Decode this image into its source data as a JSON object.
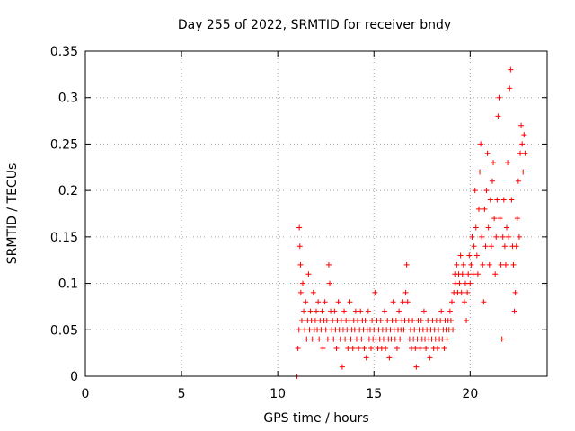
{
  "chart_data": {
    "type": "scatter",
    "title": "Day 255 of 2022, SRMTID for receiver bndy",
    "xlabel": "GPS time / hours",
    "ylabel": "SRMTID / TECUs",
    "xlim": [
      0,
      24
    ],
    "ylim": [
      0,
      0.35
    ],
    "xticks": [
      0,
      5,
      10,
      15,
      20
    ],
    "yticks": [
      0,
      0.05,
      0.1,
      0.15,
      0.2,
      0.25,
      0.3,
      0.35
    ],
    "xtick_labels": [
      "0",
      "5",
      "10",
      "15",
      "20"
    ],
    "ytick_labels": [
      "0",
      "0.05",
      "0.1",
      "0.15",
      "0.2",
      "0.25",
      "0.3",
      "0.35"
    ],
    "grid": true,
    "marker": "+",
    "color": "#ff0000",
    "series": [
      {
        "name": "SRMTID",
        "points": [
          [
            11.0,
            0.0
          ],
          [
            11.05,
            0.03
          ],
          [
            11.1,
            0.05
          ],
          [
            11.12,
            0.16
          ],
          [
            11.15,
            0.14
          ],
          [
            11.18,
            0.12
          ],
          [
            11.2,
            0.09
          ],
          [
            11.25,
            0.06
          ],
          [
            11.3,
            0.1
          ],
          [
            11.35,
            0.07
          ],
          [
            11.4,
            0.05
          ],
          [
            11.45,
            0.08
          ],
          [
            11.5,
            0.04
          ],
          [
            11.55,
            0.06
          ],
          [
            11.6,
            0.11
          ],
          [
            11.65,
            0.05
          ],
          [
            11.7,
            0.07
          ],
          [
            11.75,
            0.06
          ],
          [
            11.8,
            0.04
          ],
          [
            11.85,
            0.09
          ],
          [
            11.9,
            0.05
          ],
          [
            11.95,
            0.06
          ],
          [
            12.0,
            0.07
          ],
          [
            12.05,
            0.05
          ],
          [
            12.1,
            0.08
          ],
          [
            12.15,
            0.04
          ],
          [
            12.2,
            0.06
          ],
          [
            12.25,
            0.05
          ],
          [
            12.3,
            0.07
          ],
          [
            12.35,
            0.03
          ],
          [
            12.4,
            0.06
          ],
          [
            12.45,
            0.08
          ],
          [
            12.5,
            0.05
          ],
          [
            12.55,
            0.06
          ],
          [
            12.6,
            0.04
          ],
          [
            12.65,
            0.12
          ],
          [
            12.7,
            0.1
          ],
          [
            12.75,
            0.07
          ],
          [
            12.8,
            0.05
          ],
          [
            12.85,
            0.06
          ],
          [
            12.9,
            0.04
          ],
          [
            12.95,
            0.07
          ],
          [
            13.0,
            0.05
          ],
          [
            13.05,
            0.03
          ],
          [
            13.1,
            0.06
          ],
          [
            13.15,
            0.08
          ],
          [
            13.2,
            0.05
          ],
          [
            13.25,
            0.04
          ],
          [
            13.3,
            0.06
          ],
          [
            13.35,
            0.01
          ],
          [
            13.4,
            0.05
          ],
          [
            13.45,
            0.07
          ],
          [
            13.5,
            0.04
          ],
          [
            13.55,
            0.06
          ],
          [
            13.6,
            0.05
          ],
          [
            13.65,
            0.03
          ],
          [
            13.7,
            0.06
          ],
          [
            13.75,
            0.08
          ],
          [
            13.8,
            0.04
          ],
          [
            13.85,
            0.05
          ],
          [
            13.9,
            0.03
          ],
          [
            13.95,
            0.06
          ],
          [
            14.0,
            0.05
          ],
          [
            14.05,
            0.07
          ],
          [
            14.1,
            0.04
          ],
          [
            14.15,
            0.06
          ],
          [
            14.2,
            0.03
          ],
          [
            14.25,
            0.05
          ],
          [
            14.3,
            0.07
          ],
          [
            14.35,
            0.04
          ],
          [
            14.4,
            0.06
          ],
          [
            14.45,
            0.05
          ],
          [
            14.5,
            0.03
          ],
          [
            14.55,
            0.06
          ],
          [
            14.6,
            0.02
          ],
          [
            14.65,
            0.05
          ],
          [
            14.7,
            0.07
          ],
          [
            14.75,
            0.04
          ],
          [
            14.8,
            0.05
          ],
          [
            14.85,
            0.03
          ],
          [
            14.9,
            0.06
          ],
          [
            14.95,
            0.04
          ],
          [
            15.0,
            0.05
          ],
          [
            15.05,
            0.09
          ],
          [
            15.1,
            0.04
          ],
          [
            15.15,
            0.06
          ],
          [
            15.2,
            0.03
          ],
          [
            15.25,
            0.05
          ],
          [
            15.3,
            0.04
          ],
          [
            15.35,
            0.06
          ],
          [
            15.4,
            0.03
          ],
          [
            15.45,
            0.05
          ],
          [
            15.5,
            0.04
          ],
          [
            15.55,
            0.07
          ],
          [
            15.6,
            0.03
          ],
          [
            15.65,
            0.05
          ],
          [
            15.7,
            0.06
          ],
          [
            15.75,
            0.04
          ],
          [
            15.8,
            0.02
          ],
          [
            15.85,
            0.05
          ],
          [
            15.9,
            0.04
          ],
          [
            15.95,
            0.06
          ],
          [
            16.0,
            0.08
          ],
          [
            16.05,
            0.05
          ],
          [
            16.1,
            0.04
          ],
          [
            16.15,
            0.06
          ],
          [
            16.2,
            0.03
          ],
          [
            16.25,
            0.05
          ],
          [
            16.3,
            0.07
          ],
          [
            16.35,
            0.04
          ],
          [
            16.4,
            0.05
          ],
          [
            16.45,
            0.06
          ],
          [
            16.5,
            0.08
          ],
          [
            16.55,
            0.05
          ],
          [
            16.6,
            0.06
          ],
          [
            16.65,
            0.09
          ],
          [
            16.7,
            0.12
          ],
          [
            16.75,
            0.08
          ],
          [
            16.8,
            0.06
          ],
          [
            16.85,
            0.04
          ],
          [
            16.9,
            0.05
          ],
          [
            16.95,
            0.03
          ],
          [
            17.0,
            0.06
          ],
          [
            17.05,
            0.04
          ],
          [
            17.1,
            0.05
          ],
          [
            17.15,
            0.03
          ],
          [
            17.2,
            0.01
          ],
          [
            17.25,
            0.04
          ],
          [
            17.3,
            0.06
          ],
          [
            17.35,
            0.05
          ],
          [
            17.4,
            0.03
          ],
          [
            17.45,
            0.06
          ],
          [
            17.5,
            0.04
          ],
          [
            17.55,
            0.05
          ],
          [
            17.6,
            0.07
          ],
          [
            17.65,
            0.04
          ],
          [
            17.7,
            0.03
          ],
          [
            17.75,
            0.05
          ],
          [
            17.8,
            0.06
          ],
          [
            17.85,
            0.04
          ],
          [
            17.9,
            0.02
          ],
          [
            17.95,
            0.05
          ],
          [
            18.0,
            0.04
          ],
          [
            18.05,
            0.06
          ],
          [
            18.1,
            0.03
          ],
          [
            18.15,
            0.05
          ],
          [
            18.2,
            0.04
          ],
          [
            18.25,
            0.06
          ],
          [
            18.3,
            0.03
          ],
          [
            18.35,
            0.05
          ],
          [
            18.4,
            0.04
          ],
          [
            18.45,
            0.06
          ],
          [
            18.5,
            0.07
          ],
          [
            18.55,
            0.04
          ],
          [
            18.6,
            0.05
          ],
          [
            18.65,
            0.03
          ],
          [
            18.7,
            0.06
          ],
          [
            18.75,
            0.05
          ],
          [
            18.8,
            0.04
          ],
          [
            18.85,
            0.06
          ],
          [
            18.9,
            0.05
          ],
          [
            18.95,
            0.07
          ],
          [
            19.0,
            0.06
          ],
          [
            19.05,
            0.08
          ],
          [
            19.1,
            0.05
          ],
          [
            19.15,
            0.09
          ],
          [
            19.2,
            0.11
          ],
          [
            19.25,
            0.1
          ],
          [
            19.3,
            0.12
          ],
          [
            19.35,
            0.09
          ],
          [
            19.4,
            0.11
          ],
          [
            19.45,
            0.1
          ],
          [
            19.5,
            0.13
          ],
          [
            19.55,
            0.09
          ],
          [
            19.6,
            0.11
          ],
          [
            19.65,
            0.12
          ],
          [
            19.7,
            0.08
          ],
          [
            19.75,
            0.1
          ],
          [
            19.8,
            0.06
          ],
          [
            19.85,
            0.09
          ],
          [
            19.9,
            0.11
          ],
          [
            19.95,
            0.13
          ],
          [
            20.0,
            0.1
          ],
          [
            20.05,
            0.12
          ],
          [
            20.1,
            0.15
          ],
          [
            20.15,
            0.11
          ],
          [
            20.2,
            0.14
          ],
          [
            20.25,
            0.2
          ],
          [
            20.3,
            0.16
          ],
          [
            20.35,
            0.13
          ],
          [
            20.4,
            0.11
          ],
          [
            20.45,
            0.18
          ],
          [
            20.5,
            0.22
          ],
          [
            20.55,
            0.25
          ],
          [
            20.6,
            0.15
          ],
          [
            20.65,
            0.12
          ],
          [
            20.7,
            0.08
          ],
          [
            20.75,
            0.18
          ],
          [
            20.8,
            0.14
          ],
          [
            20.85,
            0.2
          ],
          [
            20.9,
            0.24
          ],
          [
            20.95,
            0.16
          ],
          [
            21.0,
            0.12
          ],
          [
            21.05,
            0.19
          ],
          [
            21.1,
            0.14
          ],
          [
            21.15,
            0.21
          ],
          [
            21.2,
            0.23
          ],
          [
            21.25,
            0.17
          ],
          [
            21.3,
            0.11
          ],
          [
            21.35,
            0.15
          ],
          [
            21.4,
            0.19
          ],
          [
            21.45,
            0.28
          ],
          [
            21.5,
            0.3
          ],
          [
            21.55,
            0.17
          ],
          [
            21.6,
            0.12
          ],
          [
            21.65,
            0.04
          ],
          [
            21.7,
            0.15
          ],
          [
            21.75,
            0.19
          ],
          [
            21.8,
            0.14
          ],
          [
            21.85,
            0.12
          ],
          [
            21.9,
            0.16
          ],
          [
            21.95,
            0.23
          ],
          [
            22.0,
            0.15
          ],
          [
            22.05,
            0.31
          ],
          [
            22.1,
            0.33
          ],
          [
            22.15,
            0.19
          ],
          [
            22.2,
            0.14
          ],
          [
            22.25,
            0.12
          ],
          [
            22.3,
            0.07
          ],
          [
            22.35,
            0.09
          ],
          [
            22.4,
            0.14
          ],
          [
            22.45,
            0.17
          ],
          [
            22.5,
            0.21
          ],
          [
            22.55,
            0.15
          ],
          [
            22.6,
            0.24
          ],
          [
            22.65,
            0.27
          ],
          [
            22.7,
            0.25
          ],
          [
            22.75,
            0.22
          ],
          [
            22.8,
            0.26
          ],
          [
            22.85,
            0.24
          ]
        ]
      }
    ]
  }
}
